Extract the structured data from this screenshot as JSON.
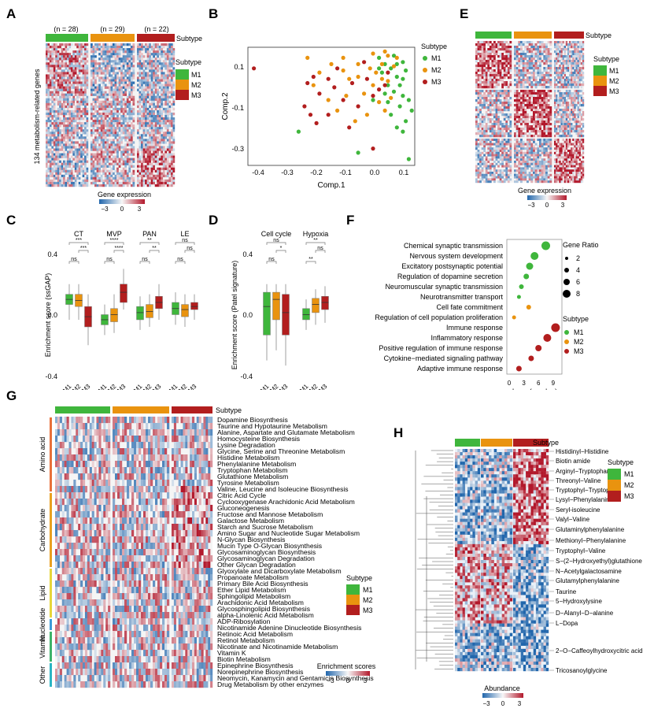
{
  "panels": {
    "A": {
      "letter": "A",
      "counts": [
        "(n = 28)",
        "(n = 29)",
        "(n = 22)"
      ],
      "subtype_label": "Subtype",
      "ylabel": "134 metabolism-related genes",
      "legend_title": "Subtype",
      "legend_items": [
        "M1",
        "M2",
        "M3"
      ],
      "scale_title": "Gene expression",
      "scale_ticks": [
        "−3",
        "0",
        "3"
      ]
    },
    "B": {
      "letter": "B",
      "xlabel": "Comp.1",
      "ylabel": "Comp.2",
      "legend_title": "Subtype",
      "legend_items": [
        "M1",
        "M2",
        "M3"
      ],
      "xticks": [
        "-0.4",
        "-0.3",
        "-0.2",
        "-0.1",
        "0.0",
        "0.1"
      ],
      "yticks": [
        "0.1",
        "-0.1",
        "-0.3"
      ]
    },
    "C": {
      "letter": "C",
      "ylabel": "Enrichment score (ssGAP)",
      "groups": [
        "CT",
        "MVP",
        "PAN",
        "LE"
      ],
      "sig_top": [
        "***",
        "****",
        "**",
        "ns"
      ],
      "sig_mid": [
        "***",
        "****",
        "**",
        "ns"
      ],
      "sig_low": [
        "ns",
        "ns",
        "ns",
        "ns"
      ],
      "yticks": [
        "0.4",
        "0.0",
        "-0.4"
      ],
      "xticks": [
        "M1",
        "M2",
        "M3"
      ]
    },
    "D": {
      "letter": "D",
      "ylabel": "Enrichment score (Patel signature)",
      "groups": [
        "Cell cycle",
        "Hypoxia"
      ],
      "sig_top": [
        "ns",
        "**"
      ],
      "sig_mid": [
        "*",
        "ns"
      ],
      "sig_low": [
        "ns",
        "**"
      ],
      "yticks": [
        "0.4",
        "0.0",
        "-0.4"
      ],
      "xticks": [
        "M1",
        "M2",
        "M3"
      ]
    },
    "E": {
      "letter": "E",
      "subtype_label": "Subtype",
      "legend_title": "Subtype",
      "legend_items": [
        "M1",
        "M2",
        "M3"
      ],
      "scale_title": "Gene expression",
      "scale_ticks": [
        "−3",
        "0",
        "3"
      ]
    },
    "F": {
      "letter": "F",
      "xticks": [
        "0",
        "3",
        "6",
        "9"
      ],
      "xlabel": "-Log₁₀(q-value)",
      "size_legend_title": "Gene Ratio",
      "size_legend_items": [
        "2",
        "4",
        "6",
        "8"
      ],
      "legend_title": "Subtype",
      "legend_items": [
        "M1",
        "M2",
        "M3"
      ]
    },
    "G": {
      "letter": "G",
      "subtype_label": "Subtype",
      "categories": [
        "Amino acid",
        "Carbohydrate",
        "Lipid",
        "Nucleotide",
        "Vitamin",
        "Other"
      ],
      "pathways": [
        "Dopamine Biosynthesis",
        "Taurine and Hypotaurine Metabolism",
        "Alanine, Aspartate and Glutamate Metabolism",
        "Homocysteine Biosynthesis",
        "Lysine Degradation",
        "Glycine, Serine and Threonine Metabolism",
        "Histidine Metabolism",
        "Phenylalanine Metabolism",
        "Tryptophan Metabolism",
        "Glutathione Metabolism",
        "Tyrosine Metabolism",
        "Valine, Leucine and Isoleucine Biosynthesis",
        "Citric Acid Cycle",
        "Cyclooxygenase Arachidonic Acid Metabolism",
        "Gluconeogenesis",
        "Fructose and Mannose Metabolism",
        "Galactose Metabolism",
        "Starch and Sucrose Metabolism",
        "Amino Sugar and Nucleotide Sugar Metabolism",
        "N-Glycan Biosynthesis",
        "Mucin Type O-Glycan Biosynthesis",
        "Glycosaminoglycan Biosynthesis",
        "Glycosaminoglycan Degradation",
        "Other Glycan Degradation",
        "Glyoxylate and Dicarboxylate Metabolism",
        "Propanoate Metabolism",
        "Primary Bile Acid Biosynthesis",
        "Ether Lipid Metabolism",
        "Sphingolipid Metabolism",
        "Arachidonic Acid Metabolism",
        "Glycosphingolipid Biosynthesis",
        "alpha-Linolenic Acid Metabolism",
        "ADP-Ribosylation",
        "Nicotinamide Adenine Dinucleotide Biosynthesis",
        "Retinoic Acid Metabolism",
        "Retinol Metabolism",
        "Nicotinate and Nicotinamide Metabolism",
        "Vitamin K",
        "Biotin Metabolism",
        "Epinephrine Biosynthesis",
        "Norepinephrine Biosynthesis",
        "Neomycin, Kanamycin and Gentamicin Biosynthesis",
        "Drug Metabolism by other enzymes"
      ],
      "legend_title": "Subtype",
      "legend_items": [
        "M1",
        "M2",
        "M3"
      ],
      "scale_title": "Enrichment scores",
      "scale_ticks": [
        "−3",
        "0",
        "3"
      ]
    },
    "H": {
      "letter": "H",
      "subtype_label": "Subtype",
      "metabolites": [
        "Histidinyl−Histidine",
        "Biotin amide",
        "Arginyl−Tryptophan",
        "Threonyl−Valine",
        "Tryptophyl−Tryptophan",
        "Lysyl−Phenylalanine",
        "Seryl-isoleucine",
        "Valyl−Valine",
        "Glutaminylphenylalanine",
        "Methionyl−Phenylalanine",
        "Tryptophyl−Valine",
        "S−(2−Hydroxyethyl)glutathione",
        "N−Acetylgalactosamine",
        "Glutamylphenylalanine",
        "Taurine",
        "5−Hydroxylysine",
        "D−Alanyl−D−alanine",
        "L−Dopa",
        "2−O−Caffeoylhydroxycitric acid",
        "Tricosanoylglycine"
      ],
      "legend_title": "Subtype",
      "legend_items": [
        "M1",
        "M2",
        "M3"
      ],
      "scale_title": "Abundance",
      "scale_ticks": [
        "−3",
        "0",
        "3"
      ]
    }
  },
  "chart_data": [
    {
      "panel": "B",
      "type": "scatter",
      "xlabel": "Comp.1",
      "ylabel": "Comp.2",
      "xlim": [
        -0.42,
        0.14
      ],
      "ylim": [
        -0.36,
        0.2
      ],
      "legend_title": "Subtype",
      "legend_position": "right",
      "series": [
        {
          "name": "M1",
          "color": "#3fb63c",
          "points": [
            [
              0.02,
              0.15
            ],
            [
              0.04,
              0.12
            ],
            [
              0.06,
              0.1
            ],
            [
              0.08,
              0.12
            ],
            [
              0.1,
              0.13
            ],
            [
              0.08,
              0.06
            ],
            [
              0.05,
              0.02
            ],
            [
              0.07,
              -0.01
            ],
            [
              0.1,
              -0.03
            ],
            [
              0.12,
              -0.05
            ],
            [
              0.09,
              -0.08
            ],
            [
              0.06,
              -0.12
            ],
            [
              0.11,
              -0.15
            ],
            [
              0.1,
              -0.2
            ],
            [
              0.12,
              -0.33
            ],
            [
              -0.25,
              -0.2
            ],
            [
              -0.05,
              -0.3
            ],
            [
              0.0,
              -0.05
            ],
            [
              0.07,
              0.16
            ],
            [
              0.05,
              -0.06
            ],
            [
              0.1,
              0.05
            ],
            [
              0.03,
              0.08
            ],
            [
              0.13,
              -0.1
            ],
            [
              0.08,
              -0.18
            ],
            [
              0.04,
              -0.02
            ],
            [
              0.02,
              0.1
            ],
            [
              0.11,
              0.09
            ],
            [
              0.09,
              0.02
            ]
          ]
        },
        {
          "name": "M2",
          "color": "#e9930f",
          "points": [
            [
              -0.22,
              0.15
            ],
            [
              -0.18,
              0.08
            ],
            [
              -0.2,
              0.02
            ],
            [
              -0.15,
              -0.05
            ],
            [
              -0.1,
              0.15
            ],
            [
              -0.08,
              0.05
            ],
            [
              -0.12,
              -0.1
            ],
            [
              -0.05,
              0.12
            ],
            [
              0.0,
              0.17
            ],
            [
              0.01,
              0.08
            ],
            [
              0.03,
              0.12
            ],
            [
              0.05,
              0.04
            ],
            [
              -0.03,
              -0.02
            ],
            [
              0.04,
              -0.1
            ],
            [
              -0.06,
              -0.15
            ],
            [
              0.07,
              0.11
            ],
            [
              0.02,
              -0.06
            ],
            [
              -0.01,
              0.1
            ],
            [
              0.05,
              0.16
            ],
            [
              0.0,
              0.02
            ],
            [
              -0.14,
              0.12
            ],
            [
              -0.09,
              -0.03
            ],
            [
              0.03,
              0.05
            ],
            [
              -0.02,
              -0.12
            ],
            [
              0.06,
              -0.04
            ],
            [
              -0.1,
              0.09
            ],
            [
              0.04,
              0.18
            ],
            [
              0.08,
              0.15
            ],
            [
              -0.05,
              0.06
            ]
          ]
        },
        {
          "name": "M3",
          "color": "#b21e1e",
          "points": [
            [
              -0.4,
              0.1
            ],
            [
              -0.22,
              0.03
            ],
            [
              -0.2,
              0.06
            ],
            [
              -0.18,
              -0.02
            ],
            [
              -0.23,
              -0.08
            ],
            [
              -0.15,
              -0.12
            ],
            [
              -0.19,
              -0.16
            ],
            [
              -0.13,
              0.01
            ],
            [
              -0.1,
              -0.05
            ],
            [
              -0.05,
              -0.08
            ],
            [
              -0.08,
              -0.18
            ],
            [
              -0.02,
              0.05
            ],
            [
              0.0,
              -0.03
            ],
            [
              0.02,
              0.0
            ],
            [
              -0.12,
              0.1
            ],
            [
              -0.07,
              0.03
            ],
            [
              0.0,
              -0.28
            ],
            [
              -0.15,
              0.05
            ],
            [
              -0.21,
              -0.12
            ],
            [
              0.04,
              0.02
            ],
            [
              -0.03,
              0.13
            ],
            [
              0.05,
              0.08
            ]
          ]
        }
      ]
    },
    {
      "panel": "C",
      "type": "box",
      "ylabel": "Enrichment score (ssGAP)",
      "ylim": [
        -0.6,
        0.6
      ],
      "categories": [
        "M1",
        "M2",
        "M3"
      ],
      "colors": [
        "#3fb63c",
        "#e9930f",
        "#b21e1e"
      ],
      "groups": [
        {
          "name": "CT",
          "boxes": [
            [
              -0.05,
              0.1,
              0.15,
              0.2,
              0.3
            ],
            [
              -0.05,
              0.08,
              0.14,
              0.2,
              0.3
            ],
            [
              -0.3,
              -0.12,
              -0.02,
              0.08,
              0.2
            ]
          ]
        },
        {
          "name": "MVP",
          "boxes": [
            [
              -0.2,
              -0.1,
              -0.05,
              0.0,
              0.1
            ],
            [
              -0.18,
              -0.07,
              0.0,
              0.06,
              0.2
            ],
            [
              0.05,
              0.12,
              0.22,
              0.3,
              0.45
            ]
          ]
        },
        {
          "name": "PAN",
          "boxes": [
            [
              -0.15,
              -0.05,
              0.02,
              0.08,
              0.18
            ],
            [
              -0.12,
              -0.03,
              0.03,
              0.1,
              0.2
            ],
            [
              -0.05,
              0.06,
              0.12,
              0.18,
              0.3
            ]
          ]
        },
        {
          "name": "LE",
          "boxes": [
            [
              -0.1,
              0.0,
              0.06,
              0.12,
              0.22
            ],
            [
              -0.12,
              -0.02,
              0.05,
              0.1,
              0.2
            ],
            [
              -0.05,
              0.05,
              0.08,
              0.12,
              0.2
            ]
          ]
        }
      ]
    },
    {
      "panel": "D",
      "type": "box",
      "ylabel": "Enrichment score (Patel signature)",
      "ylim": [
        -0.6,
        0.6
      ],
      "categories": [
        "M1",
        "M2",
        "M3"
      ],
      "colors": [
        "#3fb63c",
        "#e9930f",
        "#b21e1e"
      ],
      "groups": [
        {
          "name": "Cell cycle",
          "boxes": [
            [
              -0.45,
              -0.2,
              0.08,
              0.22,
              0.3
            ],
            [
              -0.35,
              -0.05,
              0.15,
              0.22,
              0.3
            ],
            [
              -0.5,
              -0.2,
              0.02,
              0.2,
              0.3
            ]
          ]
        },
        {
          "name": "Hypoxia",
          "boxes": [
            [
              -0.15,
              -0.05,
              0.0,
              0.06,
              0.15
            ],
            [
              -0.1,
              0.02,
              0.1,
              0.16,
              0.25
            ],
            [
              -0.08,
              0.05,
              0.12,
              0.18,
              0.28
            ]
          ]
        }
      ]
    },
    {
      "panel": "F",
      "type": "scatter",
      "xlabel": "-Log₁₀(q-value)",
      "xlim": [
        0,
        10
      ],
      "categories": [
        "Chemical synaptic transmission",
        "Nervous system development",
        "Excitatory postsynaptic potential",
        "Regulation of dopamine secretion",
        "Neuromuscular synaptic transmission",
        "Neurotransmitter transport",
        "Cell fate commitment",
        "Regulation of cell population proliferation",
        "Immune response",
        "Inflammatory response",
        "Positive regulation of immune response",
        "Cytokine−mediated signaling pathway",
        "Adaptive immune response"
      ],
      "x": [
        7.5,
        5.2,
        4.2,
        3.5,
        2.5,
        2.0,
        4.0,
        1.0,
        9.5,
        7.8,
        6.0,
        4.5,
        2.0
      ],
      "gene_ratio": [
        8,
        7,
        6,
        4,
        3,
        2,
        3,
        2,
        8,
        7,
        5,
        4,
        4
      ],
      "subtype": [
        "M1",
        "M1",
        "M1",
        "M1",
        "M1",
        "M1",
        "M2",
        "M2",
        "M3",
        "M3",
        "M3",
        "M3",
        "M3"
      ]
    }
  ],
  "colors": {
    "M1": "#3fb63c",
    "M2": "#e9930f",
    "M3": "#b21e1e",
    "heat_low": "#2166ac",
    "heat_mid": "#f7f7f7",
    "heat_high": "#b2182b"
  }
}
